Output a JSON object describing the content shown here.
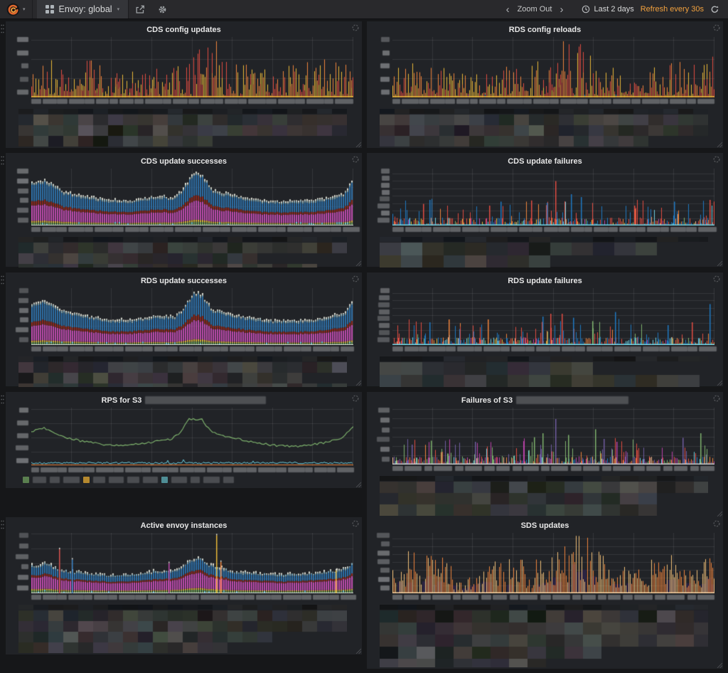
{
  "nav": {
    "dashboard_title": "Envoy: global",
    "zoom_out_label": "Zoom Out",
    "time_range_label": "Last 2 days",
    "refresh_label": "Refresh every 30s",
    "accent_color": "#F2A13E",
    "icons": [
      "grafana-logo",
      "dropdown-caret",
      "dashboard-grid",
      "share",
      "gear",
      "chevron-left",
      "chevron-right",
      "clock",
      "refresh"
    ]
  },
  "theme": {
    "page_bg": "#161719",
    "panel_bg": "#212327",
    "nav_bg": "#29292c",
    "grid_line": "rgba(255,255,255,0.09)",
    "title_text": "#e7e7e7",
    "redaction_box": "#8a8c8f",
    "note": "y-axis ticks, x-axis timestamps and legends are pixelated/redacted in the source screenshot"
  },
  "panels": [
    {
      "title": "CDS config updates",
      "chart_index": 0,
      "legend": "mosaic",
      "legend_cell": [
        21,
        15
      ],
      "ylabels": 5,
      "xgroups": 12
    },
    {
      "title": "RDS config reloads",
      "chart_index": 1,
      "legend": "mosaic",
      "legend_cell": [
        21,
        15
      ],
      "ylabels": 5,
      "xgroups": 12
    },
    {
      "title": "CDS update successes",
      "chart_index": 2,
      "legend": "mosaic",
      "legend_cell": [
        21,
        15
      ],
      "ylabels": 6,
      "xgroups": 12
    },
    {
      "title": "CDS update failures",
      "chart_index": 3,
      "legend": "mosaic",
      "legend_cell": [
        30,
        18
      ],
      "ylabels": 8,
      "xgroups": 12
    },
    {
      "title": "RDS update successes",
      "chart_index": 4,
      "legend": "mosaic",
      "legend_cell": [
        21,
        15
      ],
      "ylabels": 6,
      "xgroups": 12
    },
    {
      "title": "RDS update failures",
      "chart_index": 5,
      "legend": "mosaic",
      "legend_cell": [
        30,
        18
      ],
      "ylabels": 8,
      "xgroups": 12
    },
    {
      "title": "RPS for S3",
      "chart_index": 6,
      "legend": "inline",
      "title_redacted_width": 170,
      "ylabels": 5,
      "xgroups": 12,
      "inline_legend": {
        "groups": [
          {
            "swatch": "#5A7F4F",
            "labels": 3
          },
          {
            "swatch": "#B5892F",
            "labels": 4
          },
          {
            "swatch": "#4F8E96",
            "labels": 4
          }
        ]
      }
    },
    {
      "title": "Failures of S3",
      "chart_index": 7,
      "legend": "mosaic",
      "legend_cell": [
        26,
        16
      ],
      "title_redacted_width": 158,
      "ylabels": 6,
      "xgroups": 11
    },
    {
      "title": "Active envoy instances",
      "chart_index": 8,
      "legend": "mosaic",
      "legend_cell": [
        21,
        15
      ],
      "ylabels": 6,
      "xgroups": 12
    },
    {
      "title": "SDS updates",
      "chart_index": 9,
      "legend": "mosaic",
      "legend_cell": [
        26,
        17
      ],
      "ylabels": 7,
      "xgroups": 11
    }
  ],
  "chart_data": [
    {
      "title": "CDS config updates",
      "type": "bar",
      "style": "spiky-warm",
      "seed": 101,
      "x_axis": {
        "range": "Last 2 days",
        "tick_labels": "redacted"
      },
      "y_axis": {
        "tick_labels": "redacted"
      },
      "palette": [
        "#EAB839",
        "#EF843C",
        "#E24D42"
      ],
      "envelope": {
        "x": [
          0,
          0.03,
          0.1,
          0.18,
          0.25,
          0.32,
          0.4,
          0.46,
          0.5,
          0.54,
          0.58,
          0.62,
          0.68,
          0.75,
          0.82,
          0.9,
          0.96,
          1
        ],
        "y": [
          0.4,
          0.55,
          0.5,
          0.55,
          0.35,
          0.38,
          0.45,
          0.5,
          0.62,
          0.9,
          0.85,
          0.6,
          0.45,
          0.38,
          0.5,
          0.55,
          0.5,
          0.6
        ]
      },
      "note": "noisy yellow/orange/red spikes, tallest cluster just right of centre"
    },
    {
      "title": "RDS config reloads",
      "type": "bar",
      "style": "spiky-warm",
      "seed": 202,
      "palette": [
        "#EAB839",
        "#EF843C",
        "#E24D42"
      ],
      "envelope": {
        "x": [
          0,
          0.03,
          0.1,
          0.18,
          0.25,
          0.32,
          0.4,
          0.46,
          0.5,
          0.54,
          0.58,
          0.62,
          0.68,
          0.75,
          0.82,
          0.9,
          0.96,
          1
        ],
        "y": [
          0.45,
          0.5,
          0.55,
          0.5,
          0.32,
          0.4,
          0.5,
          0.55,
          0.6,
          0.88,
          0.8,
          0.55,
          0.42,
          0.36,
          0.45,
          0.55,
          0.5,
          0.62
        ]
      }
    },
    {
      "title": "CDS update successes",
      "type": "bar",
      "style": "stacked",
      "seed": 303,
      "bands": [
        {
          "c": "#6F9E5C",
          "f": 0.07
        },
        {
          "c": "#D9B23A",
          "f": 0.04
        },
        {
          "c": "#BE4BAD",
          "f": 0.36
        },
        {
          "c": "#8C2A1E",
          "f": 0.1
        },
        {
          "c": "#2E6FA7",
          "f": 0.38
        }
      ],
      "envelope": {
        "x": [
          0,
          0.04,
          0.1,
          0.17,
          0.24,
          0.3,
          0.36,
          0.4,
          0.44,
          0.47,
          0.5,
          0.53,
          0.56,
          0.6,
          0.66,
          0.72,
          0.8,
          0.86,
          0.92,
          0.97,
          1
        ],
        "y": [
          0.73,
          0.79,
          0.58,
          0.49,
          0.43,
          0.41,
          0.47,
          0.5,
          0.47,
          0.62,
          0.93,
          0.88,
          0.6,
          0.55,
          0.48,
          0.42,
          0.4,
          0.42,
          0.47,
          0.55,
          0.82
        ]
      },
      "note": "diurnal stacked series: green/yellow base, magenta, dark-red, blue, white tips"
    },
    {
      "title": "CDS update failures",
      "type": "bar",
      "style": "failures",
      "seed": 404,
      "n": 80,
      "baseline": "#6ED0E0",
      "strip": [
        [
          "#E24D42",
          3
        ],
        [
          "#1F78C1",
          2.5
        ],
        [
          "#EF843C",
          1.5
        ],
        [
          "#6ED0E0",
          1
        ],
        [
          "#EAB839",
          1
        ],
        [
          "#BA43A9",
          0.8
        ],
        [
          "#7EB26D",
          0.8
        ],
        [
          "#F9BA8F",
          0.6
        ]
      ],
      "spikeColors": [
        [
          "#E24D42",
          1
        ],
        [
          "#1F78C1",
          1
        ],
        [
          "#EF843C",
          0.25
        ],
        [
          "#6ED0E0",
          0.2
        ]
      ],
      "spikes": [
        {
          "x": 0.505,
          "h": 0.78,
          "c": "#E24D42"
        },
        {
          "x": 0.555,
          "h": 0.55,
          "c": "#1F78C1"
        },
        {
          "x": 0.115,
          "h": 0.45,
          "c": "#1F78C1"
        },
        {
          "x": 0.095,
          "h": 0.38,
          "c": "#E24D42"
        },
        {
          "x": 0.335,
          "h": 0.42,
          "c": "#1F78C1"
        },
        {
          "x": 0.43,
          "h": 0.44,
          "c": "#E24D42"
        },
        {
          "x": 0.48,
          "h": 0.4,
          "c": "#1F78C1"
        },
        {
          "x": 0.585,
          "h": 0.5,
          "c": "#1F78C1"
        },
        {
          "x": 0.75,
          "h": 0.35,
          "c": "#E24D42"
        },
        {
          "x": 0.875,
          "h": 0.42,
          "c": "#1F78C1"
        },
        {
          "x": 0.985,
          "h": 0.45,
          "c": "#E24D42"
        },
        {
          "x": 0.3,
          "h": 0.35,
          "c": "#E24D42"
        }
      ]
    },
    {
      "title": "RDS update successes",
      "type": "bar",
      "style": "stacked",
      "seed": 505,
      "bands": [
        {
          "c": "#6F9E5C",
          "f": 0.07
        },
        {
          "c": "#D9B23A",
          "f": 0.04
        },
        {
          "c": "#BE4BAD",
          "f": 0.36
        },
        {
          "c": "#8C2A1E",
          "f": 0.1
        },
        {
          "c": "#2E6FA7",
          "f": 0.38
        }
      ],
      "envelope": {
        "x": [
          0,
          0.04,
          0.1,
          0.17,
          0.24,
          0.3,
          0.36,
          0.4,
          0.44,
          0.47,
          0.5,
          0.53,
          0.56,
          0.6,
          0.66,
          0.72,
          0.8,
          0.86,
          0.92,
          0.97,
          1
        ],
        "y": [
          0.73,
          0.79,
          0.58,
          0.49,
          0.43,
          0.41,
          0.47,
          0.5,
          0.47,
          0.62,
          0.93,
          0.88,
          0.6,
          0.55,
          0.48,
          0.42,
          0.4,
          0.42,
          0.47,
          0.55,
          0.82
        ]
      }
    },
    {
      "title": "RDS update failures",
      "type": "bar",
      "style": "failures",
      "seed": 606,
      "n": 85,
      "baseline": "#6ED0E0",
      "strip": [
        [
          "#E24D42",
          3
        ],
        [
          "#1F78C1",
          2.5
        ],
        [
          "#EF843C",
          1.5
        ],
        [
          "#6ED0E0",
          1
        ],
        [
          "#EAB839",
          1.2
        ],
        [
          "#BA43A9",
          0.8
        ],
        [
          "#7EB26D",
          0.8
        ],
        [
          "#F9BA8F",
          0.8
        ]
      ],
      "spikeColors": [
        [
          "#E24D42",
          1
        ],
        [
          "#1F78C1",
          1.1
        ],
        [
          "#EF843C",
          0.3
        ],
        [
          "#7EB26D",
          0.15
        ]
      ],
      "spikes": [
        {
          "x": 0.985,
          "h": 0.72,
          "c": "#1F78C1"
        },
        {
          "x": 0.69,
          "h": 0.58,
          "c": "#1F78C1"
        },
        {
          "x": 0.49,
          "h": 0.55,
          "c": "#E24D42"
        },
        {
          "x": 0.525,
          "h": 0.55,
          "c": "#E24D42"
        },
        {
          "x": 0.465,
          "h": 0.5,
          "c": "#1F78C1"
        },
        {
          "x": 0.56,
          "h": 0.48,
          "c": "#1F78C1"
        },
        {
          "x": 0.115,
          "h": 0.4,
          "c": "#1F78C1"
        },
        {
          "x": 0.175,
          "h": 0.45,
          "c": "#EF843C"
        },
        {
          "x": 0.295,
          "h": 0.45,
          "c": "#EF843C"
        },
        {
          "x": 0.62,
          "h": 0.42,
          "c": "#7EB26D"
        },
        {
          "x": 0.93,
          "h": 0.4,
          "c": "#E24D42"
        },
        {
          "x": 0.855,
          "h": 0.35,
          "c": "#1F78C1"
        }
      ]
    },
    {
      "title": "RPS for S3 (name redacted)",
      "type": "line",
      "style": "line",
      "seed": 707,
      "series": [
        {
          "name": "redacted",
          "color": "#7EB26D",
          "shape": "diurnal"
        },
        {
          "name": "redacted",
          "color": "#6ED0E0",
          "shape": "flat-near-zero"
        },
        {
          "name": "redacted",
          "color": "#EF843C",
          "shape": "flat-zero"
        }
      ],
      "envelope": {
        "x": [
          0,
          0.04,
          0.1,
          0.16,
          0.22,
          0.28,
          0.34,
          0.4,
          0.43,
          0.46,
          0.49,
          0.53,
          0.56,
          0.6,
          0.65,
          0.7,
          0.76,
          0.82,
          0.88,
          0.93,
          0.97,
          1
        ],
        "y": [
          0.6,
          0.65,
          0.5,
          0.42,
          0.37,
          0.34,
          0.38,
          0.43,
          0.45,
          0.55,
          0.8,
          0.79,
          0.57,
          0.52,
          0.45,
          0.4,
          0.35,
          0.33,
          0.37,
          0.42,
          0.5,
          0.68
        ]
      }
    },
    {
      "title": "Failures of S3 (name redacted)",
      "type": "bar",
      "style": "failures",
      "seed": 808,
      "n": 110,
      "baseline": "#C9CCCE",
      "strip": [
        [
          "#E24D42",
          2
        ],
        [
          "#EF843C",
          1.5
        ],
        [
          "#6ED0E0",
          1.2
        ],
        [
          "#BA43A9",
          1.2
        ],
        [
          "#705DA0",
          1.2
        ],
        [
          "#7EB26D",
          1.5
        ],
        [
          "#F9BA8F",
          0.8
        ],
        [
          "#1F78C1",
          1
        ]
      ],
      "spikeColors": [
        [
          "#7EB26D",
          1.2
        ],
        [
          "#705DA0",
          1
        ],
        [
          "#BA43A9",
          0.7
        ],
        [
          "#E24D42",
          0.6
        ],
        [
          "#EF843C",
          0.5
        ],
        [
          "#6ED0E0",
          0.4
        ]
      ],
      "spikes": [
        {
          "x": 0.505,
          "h": 0.8,
          "c": "#705DA0"
        },
        {
          "x": 0.44,
          "h": 0.48,
          "c": "#7EB26D"
        },
        {
          "x": 0.465,
          "h": 0.55,
          "c": "#7EB26D"
        },
        {
          "x": 0.545,
          "h": 0.52,
          "c": "#7EB26D"
        },
        {
          "x": 0.63,
          "h": 0.62,
          "c": "#7EB26D"
        },
        {
          "x": 0.655,
          "h": 0.45,
          "c": "#705DA0"
        },
        {
          "x": 0.695,
          "h": 0.4,
          "c": "#BA43A9"
        },
        {
          "x": 0.9,
          "h": 0.47,
          "c": "#705DA0"
        },
        {
          "x": 0.955,
          "h": 0.55,
          "c": "#7EB26D"
        },
        {
          "x": 0.255,
          "h": 0.4,
          "c": "#705DA0"
        },
        {
          "x": 0.12,
          "h": 0.42,
          "c": "#7EB26D"
        },
        {
          "x": 0.06,
          "h": 0.35,
          "c": "#705DA0"
        }
      ]
    },
    {
      "title": "Active envoy instances",
      "type": "bar",
      "style": "stacked",
      "seed": 909,
      "tipP": 0.6,
      "bands": [
        {
          "c": "#6F9E5C",
          "f": 0.11
        },
        {
          "c": "#D9B23A",
          "f": 0.05
        },
        {
          "c": "#BE4BAD",
          "f": 0.45
        },
        {
          "c": "#8C2A1E",
          "f": 0.09
        },
        {
          "c": "#2E6FA7",
          "f": 0.3
        }
      ],
      "envelope": {
        "x": [
          0,
          0.04,
          0.1,
          0.18,
          0.26,
          0.32,
          0.38,
          0.42,
          0.46,
          0.49,
          0.52,
          0.55,
          0.58,
          0.64,
          0.7,
          0.78,
          0.86,
          0.92,
          0.97,
          1
        ],
        "y": [
          0.42,
          0.46,
          0.35,
          0.3,
          0.27,
          0.29,
          0.33,
          0.34,
          0.38,
          0.52,
          0.55,
          0.45,
          0.4,
          0.32,
          0.3,
          0.28,
          0.3,
          0.33,
          0.38,
          0.48
        ]
      },
      "spikes": [
        {
          "x": 0.085,
          "h": 0.73,
          "c": "#D9534F"
        },
        {
          "x": 0.125,
          "h": 0.56,
          "c": "#3B82C4"
        },
        {
          "x": 0.425,
          "h": 0.5,
          "c": "#BE4BAD"
        },
        {
          "x": 0.575,
          "h": 0.96,
          "c": "#EAB839"
        },
        {
          "x": 0.588,
          "h": 0.52,
          "c": "#EF843C"
        },
        {
          "x": 0.945,
          "h": 0.38,
          "c": "#EAB839"
        }
      ]
    },
    {
      "title": "SDS updates",
      "type": "bar",
      "style": "sds",
      "seed": 111,
      "palette": [
        "#EF843C",
        "#F2C178",
        "#2B2342",
        "#253058"
      ],
      "envelope": {
        "x": [
          0,
          0.04,
          0.1,
          0.16,
          0.21,
          0.26,
          0.31,
          0.37,
          0.43,
          0.48,
          0.52,
          0.56,
          0.6,
          0.65,
          0.7,
          0.75,
          0.8,
          0.86,
          0.92,
          1
        ],
        "y": [
          0.4,
          0.6,
          0.55,
          0.5,
          0.25,
          0.3,
          0.45,
          0.5,
          0.45,
          0.6,
          0.8,
          0.95,
          0.8,
          0.6,
          0.45,
          0.3,
          0.5,
          0.55,
          0.5,
          0.5
        ]
      }
    }
  ]
}
